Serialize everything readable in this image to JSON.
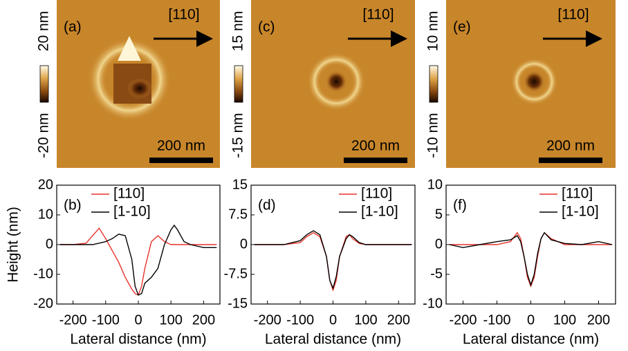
{
  "images": [
    {
      "label": "(a)",
      "direction": "[110]",
      "scale": "200 nm",
      "colorbar_max": "20 nm",
      "colorbar_min": "-20 nm"
    },
    {
      "label": "(c)",
      "direction": "[110]",
      "scale": "200 nm",
      "colorbar_max": "15 nm",
      "colorbar_min": "-15 nm"
    },
    {
      "label": "(e)",
      "direction": "[110]",
      "scale": "200 nm",
      "colorbar_max": "10 nm",
      "colorbar_min": "-10 nm"
    }
  ],
  "chart_data": [
    {
      "type": "line",
      "label": "(b)",
      "y_label": "Height (nm)",
      "x_label": "Lateral distance (nm)",
      "x": [
        -240,
        -200,
        -160,
        -140,
        -120,
        -100,
        -80,
        -60,
        -40,
        -20,
        -10,
        0,
        10,
        20,
        40,
        60,
        80,
        100,
        110,
        120,
        140,
        160,
        200,
        240
      ],
      "series": [
        {
          "name": "[110]",
          "color": "#e8312a",
          "values": [
            0,
            0,
            0.5,
            3,
            5.5,
            2,
            -2,
            -6,
            -11,
            -15,
            -16.5,
            -17,
            -14,
            -8,
            1,
            3,
            1,
            0,
            0,
            0,
            0,
            0,
            0,
            0
          ]
        },
        {
          "name": "[1-10]",
          "color": "#000000",
          "values": [
            0,
            0,
            0,
            0,
            0.5,
            1,
            2,
            3.5,
            3,
            -5,
            -14,
            -17,
            -16.5,
            -13,
            -11,
            -8,
            0,
            5,
            6.5,
            5,
            1,
            0,
            -1,
            -1
          ]
        }
      ],
      "xlim": [
        -250,
        250
      ],
      "xticks": [
        -200,
        -100,
        0,
        100,
        200
      ],
      "ylim": [
        -20,
        20
      ],
      "yticks": [
        20,
        10,
        0,
        -10,
        -20
      ],
      "legend": "upper center"
    },
    {
      "type": "line",
      "label": "(d)",
      "x_label": "Lateral distance (nm)",
      "x": [
        -240,
        -200,
        -150,
        -100,
        -80,
        -60,
        -40,
        -20,
        -10,
        0,
        10,
        20,
        40,
        50,
        60,
        80,
        100,
        150,
        200,
        240
      ],
      "series": [
        {
          "name": "[110]",
          "color": "#e8312a",
          "values": [
            0,
            0,
            0,
            0.5,
            2,
            3,
            2,
            -3,
            -9,
            -11.5,
            -9,
            -3,
            2,
            2.5,
            1.5,
            0.3,
            0,
            0,
            0,
            0
          ]
        },
        {
          "name": "[1-10]",
          "color": "#000000",
          "values": [
            0,
            0,
            0,
            1,
            2.5,
            3.5,
            2.5,
            -3,
            -9,
            -11,
            -8,
            -3,
            1.5,
            2.5,
            2,
            0.5,
            0,
            0,
            0,
            0
          ]
        }
      ],
      "xlim": [
        -250,
        250
      ],
      "xticks": [
        -200,
        -100,
        0,
        100,
        200
      ],
      "ylim": [
        -15,
        15
      ],
      "yticks": [
        15,
        7.5,
        0,
        -7.5,
        -15
      ],
      "legend": "upper right"
    },
    {
      "type": "line",
      "label": "(f)",
      "x_label": "Lateral distance (nm)",
      "x": [
        -240,
        -200,
        -150,
        -100,
        -60,
        -40,
        -30,
        -20,
        -10,
        0,
        10,
        20,
        30,
        40,
        60,
        100,
        150,
        200,
        240
      ],
      "series": [
        {
          "name": "[110]",
          "color": "#e8312a",
          "values": [
            0,
            0,
            0,
            0,
            0.5,
            2,
            1,
            -2,
            -5.5,
            -7,
            -5.5,
            -2,
            1,
            2,
            1,
            0,
            0,
            0,
            0
          ]
        },
        {
          "name": "[1-10]",
          "color": "#000000",
          "values": [
            0,
            -0.5,
            0,
            0.5,
            0.8,
            1.5,
            0.5,
            -2,
            -5,
            -6.8,
            -5,
            -1.5,
            1,
            2,
            0.8,
            0.2,
            0,
            0.5,
            0
          ]
        }
      ],
      "xlim": [
        -250,
        250
      ],
      "xticks": [
        -200,
        -100,
        0,
        100,
        200
      ],
      "ylim": [
        -10,
        10
      ],
      "yticks": [
        10,
        5,
        0,
        -5,
        -10
      ],
      "legend": "upper right"
    }
  ]
}
